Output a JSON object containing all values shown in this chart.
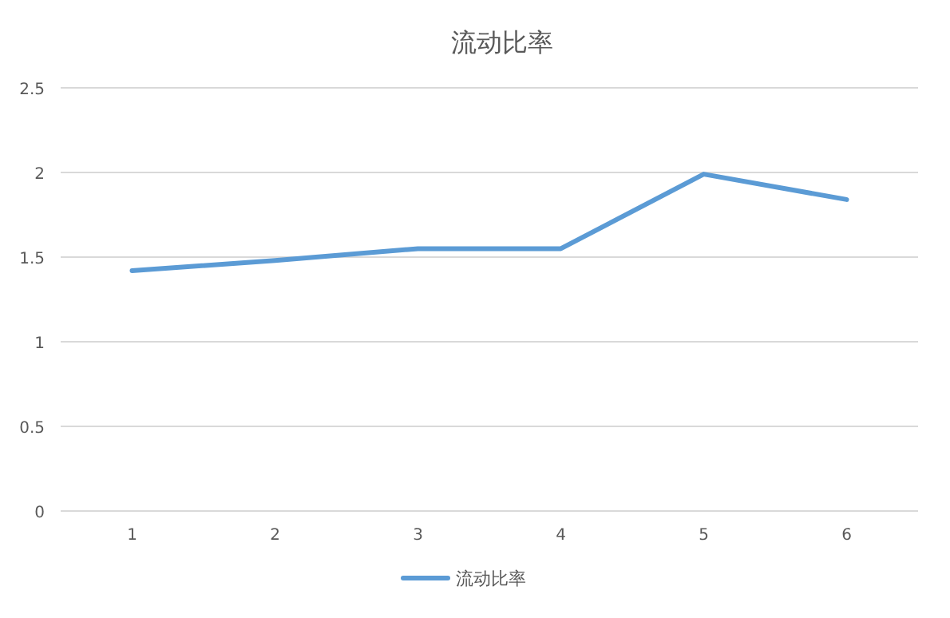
{
  "chart_data": {
    "type": "line",
    "title": "流动比率",
    "categories": [
      "1",
      "2",
      "3",
      "4",
      "5",
      "6"
    ],
    "series": [
      {
        "name": "流动比率",
        "color": "#5b9bd5",
        "values": [
          1.42,
          1.48,
          1.55,
          1.55,
          1.99,
          1.84
        ]
      }
    ],
    "ylim": [
      0,
      2.5
    ],
    "yticks": [
      0,
      0.5,
      1,
      1.5,
      2,
      2.5
    ],
    "grid": "y",
    "legend": "bottom",
    "marker": "none",
    "line_style": "solid"
  }
}
